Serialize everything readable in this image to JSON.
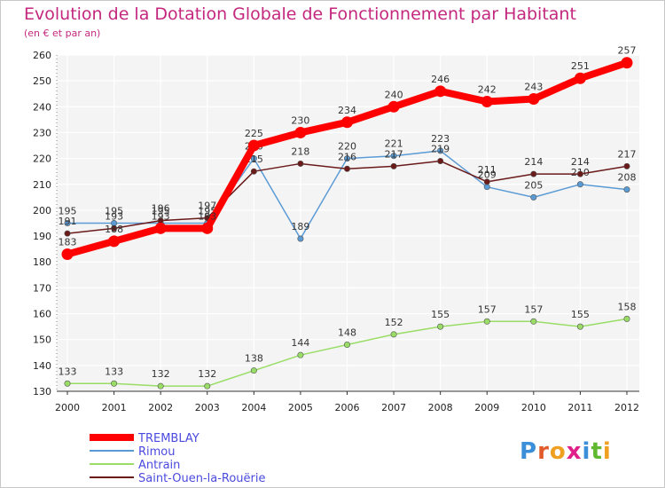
{
  "title": "Evolution de la Dotation Globale de Fonctionnement par Habitant",
  "subtitle": "(en € et par an)",
  "logo_text": "Proxiti",
  "chart_data": {
    "type": "line",
    "x": [
      "2000",
      "2001",
      "2002",
      "2003",
      "2004",
      "2005",
      "2006",
      "2007",
      "2008",
      "2009",
      "2010",
      "2011",
      "2012"
    ],
    "ylim": [
      130,
      260
    ],
    "yticks": [
      130,
      140,
      150,
      160,
      170,
      180,
      190,
      200,
      210,
      220,
      230,
      240,
      250,
      260
    ],
    "grid": true,
    "legend_position": "bottom-left",
    "series": [
      {
        "name": "TREMBLAY",
        "color": "#ff0000",
        "values": [
          183,
          188,
          193,
          193,
          225,
          230,
          234,
          240,
          246,
          242,
          243,
          251,
          257
        ]
      },
      {
        "name": "Rimou",
        "color": "#5b9bd5",
        "values": [
          195,
          195,
          195,
          195,
          220,
          189,
          220,
          221,
          223,
          209,
          205,
          210,
          208
        ]
      },
      {
        "name": "Antrain",
        "color": "#99dd66",
        "values": [
          133,
          133,
          132,
          132,
          138,
          144,
          148,
          152,
          155,
          157,
          157,
          155,
          158
        ]
      },
      {
        "name": "Saint-Ouen-la-Rouërie",
        "color": "#6b1a1a",
        "values": [
          191,
          193,
          196,
          197,
          215,
          218,
          216,
          217,
          219,
          211,
          214,
          214,
          217
        ]
      }
    ]
  }
}
